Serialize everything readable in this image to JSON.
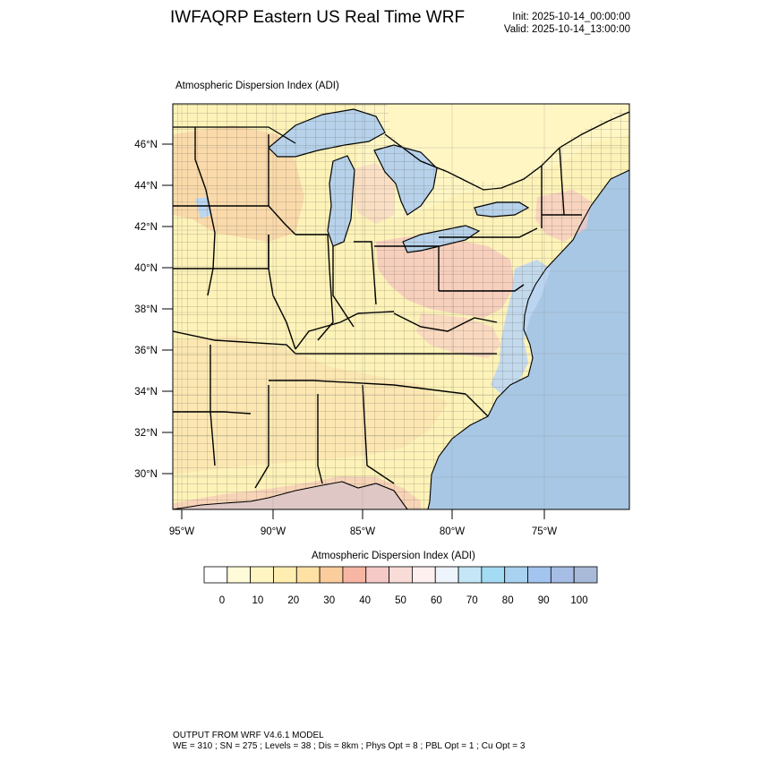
{
  "header": {
    "title": "IWFAQRP Eastern US Real Time WRF",
    "init": "Init: 2025-10-14_00:00:00",
    "valid": "Valid: 2025-10-14_13:00:00"
  },
  "map": {
    "variable_title": "Atmospheric Dispersion Index   (ADI)",
    "lat_labels": [
      "46°N",
      "44°N",
      "42°N",
      "40°N",
      "38°N",
      "36°N",
      "34°N",
      "32°N",
      "30°N"
    ],
    "lon_labels": [
      "95°W",
      "90°W",
      "85°W",
      "80°W",
      "75°W"
    ],
    "colors": {
      "land_base": "#fdf2b8",
      "land_orange": "#fbd9a6",
      "land_pink": "#f6c9c2",
      "water_blue": "#a8c7e4",
      "water_light": "#bcd7f0",
      "great_lakes": "#b7d2ea",
      "canada_land": "#fff7c6"
    }
  },
  "colorbar": {
    "title": "Atmospheric Dispersion Index  (ADI)",
    "tick_labels": [
      "0",
      "10",
      "20",
      "30",
      "40",
      "50",
      "60",
      "70",
      "80",
      "90",
      "100"
    ],
    "bin_colors": [
      "#ffffff",
      "#fffbd9",
      "#fff5c2",
      "#ffeeb0",
      "#ffe0a5",
      "#fbcc9c",
      "#f7b6a3",
      "#f5cac6",
      "#f9dcd8",
      "#fdf0ee",
      "#eef4fb",
      "#c5e6f7",
      "#a4dbf4",
      "#a9d2f1",
      "#a3c4ef",
      "#a6bde6",
      "#a8bad8"
    ]
  },
  "footer": {
    "line1": "OUTPUT FROM WRF V4.6.1 MODEL",
    "line2": "WE = 310 ; SN = 275 ; Levels = 38 ; Dis = 8km ; Phys Opt = 8 ; PBL Opt = 1 ; Cu Opt = 3"
  }
}
